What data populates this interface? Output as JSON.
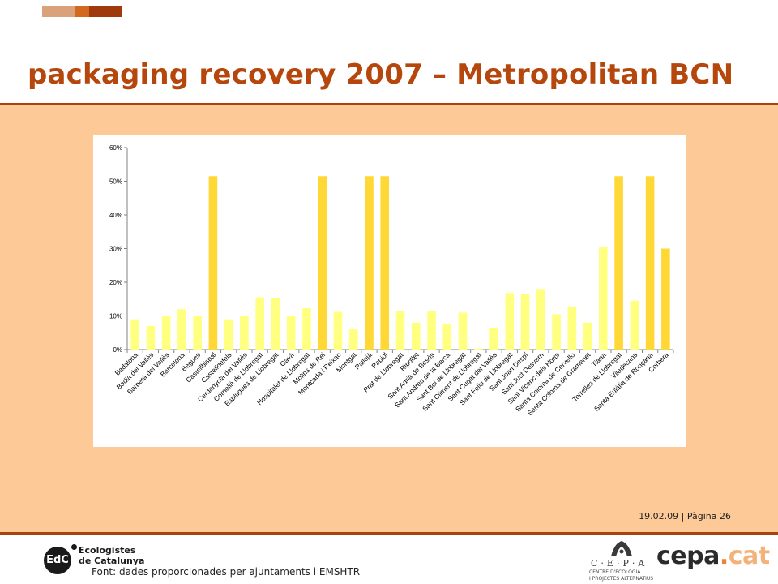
{
  "slide": {
    "title": "packaging recovery 2007 – Metropolitan BCN",
    "date_page": "19.02.09 | Pàgina 26",
    "source": "Font: dades proporcionades per ajuntaments i EMSHTR",
    "colors": {
      "title": "#b5460c",
      "rule": "#a8420f",
      "panel": "#fcc997",
      "deco": [
        "#d9a27a",
        "#d2691e",
        "#a0390c"
      ]
    }
  },
  "logos": {
    "edc_mark": "EdC",
    "edc_name_line1": "Ecologistes",
    "edc_name_line2": "de Catalunya",
    "cepa_letters": "C·E·P·A",
    "cepa_sub1": "CENTRE D'ECOLOGIA",
    "cepa_sub2": "I PROJECTES ALTERNATIUS",
    "cepa_cat_a": "cepa",
    "cepa_cat_b": ".",
    "cepa_cat_c": "cat"
  },
  "chart_data": {
    "type": "bar",
    "title": "",
    "xlabel": "",
    "ylabel": "",
    "ylim": [
      0,
      0.6
    ],
    "y_ticks": [
      "0%",
      "10%",
      "20%",
      "30%",
      "40%",
      "50%",
      "60%"
    ],
    "grid": false,
    "legend": "none",
    "colors": {
      "normal": "#ffff80",
      "highlight": "#ffd835"
    },
    "categories": [
      "Badalona",
      "Badia del Vallès",
      "Barberà del Vallès",
      "Barcelona",
      "Begues",
      "Castellbisbal",
      "Castelldefels",
      "Cerdanyola del Vallès",
      "Cornellà de Llobregat",
      "Esplugues de Llobregat",
      "Gavà",
      "Hospitalet de Llobregat",
      "Molins de Rei",
      "Montcada i Reixac",
      "Montgat",
      "Pallejà",
      "Papiol",
      "Prat de Llobregat",
      "Ripollet",
      "Sant Adrià de Besòs",
      "Sant Andreu de la Barca",
      "Sant Boi de Llobregat",
      "Sant Climent de Llobregat",
      "Sant Cugat del Vallès",
      "Sant Feliu de Llobregat",
      "Sant Joan Despí",
      "Sant Just Desvern",
      "Sant Vicenç dels Horts",
      "Santa Coloma de Cervelló",
      "Santa Coloma de Gramenet",
      "Tiana",
      "Torrelles de Llobregat",
      "Viladecans",
      "Santa Eulàlia de Ronçana",
      "Corbera"
    ],
    "values": [
      0.09,
      0.07,
      0.1,
      0.12,
      0.1,
      0.515,
      0.09,
      0.1,
      0.155,
      0.153,
      0.1,
      0.123,
      0.515,
      0.112,
      0.06,
      0.515,
      0.515,
      0.115,
      0.08,
      0.115,
      0.075,
      0.11,
      0.003,
      0.065,
      0.168,
      0.165,
      0.18,
      0.105,
      0.128,
      0.08,
      0.305,
      0.515,
      0.145,
      0.515,
      0.3
    ],
    "highlighted": [
      false,
      false,
      false,
      false,
      false,
      true,
      false,
      false,
      false,
      false,
      false,
      false,
      true,
      false,
      false,
      true,
      true,
      false,
      false,
      false,
      false,
      false,
      false,
      false,
      false,
      false,
      false,
      false,
      false,
      false,
      false,
      true,
      false,
      true,
      true
    ]
  }
}
